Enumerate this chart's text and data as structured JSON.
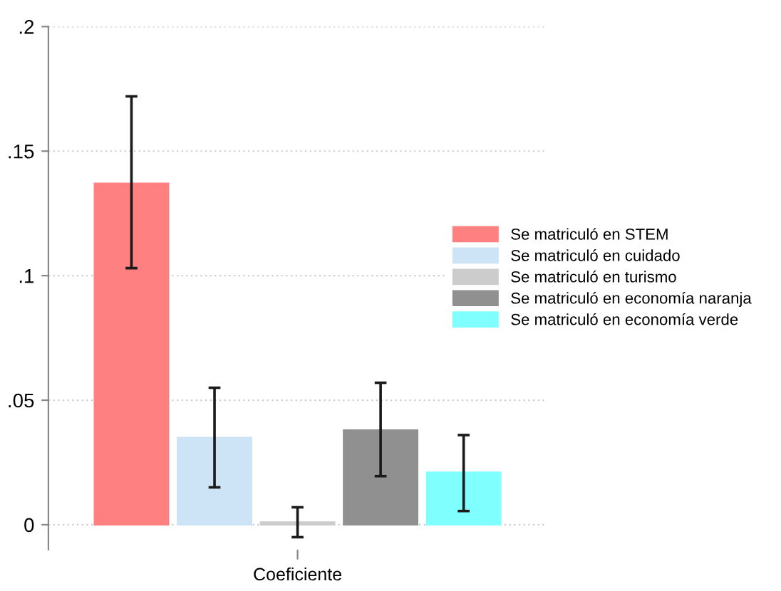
{
  "chart_data": {
    "type": "bar",
    "categories": [
      "Coeficiente"
    ],
    "series": [
      {
        "name": "Se matriculó en STEM",
        "color": "#ff8080",
        "values": [
          0.137
        ],
        "errors": [
          [
            0.103,
            0.172
          ]
        ]
      },
      {
        "name": "Se matriculó en cuidado",
        "color": "#cce4f5",
        "values": [
          0.035
        ],
        "errors": [
          [
            0.015,
            0.055
          ]
        ]
      },
      {
        "name": "Se matriculó en turismo",
        "color": "#cccccc",
        "values": [
          0.001
        ],
        "errors": [
          [
            -0.005,
            0.007
          ]
        ]
      },
      {
        "name": "Se matriculó en economía naranja",
        "color": "#909090",
        "values": [
          0.038
        ],
        "errors": [
          [
            0.0195,
            0.057
          ]
        ]
      },
      {
        "name": "Se matriculó en economía verde",
        "color": "#80ffff",
        "values": [
          0.021
        ],
        "errors": [
          [
            0.0055,
            0.036
          ]
        ]
      }
    ],
    "ylim": [
      -0.01,
      0.2
    ],
    "yticks": [
      {
        "value": 0,
        "label": "0"
      },
      {
        "value": 0.05,
        "label": ".05"
      },
      {
        "value": 0.1,
        "label": ".1"
      },
      {
        "value": 0.15,
        "label": ".15"
      },
      {
        "value": 0.2,
        "label": ".2"
      }
    ],
    "grid": "y",
    "legend": "right"
  }
}
